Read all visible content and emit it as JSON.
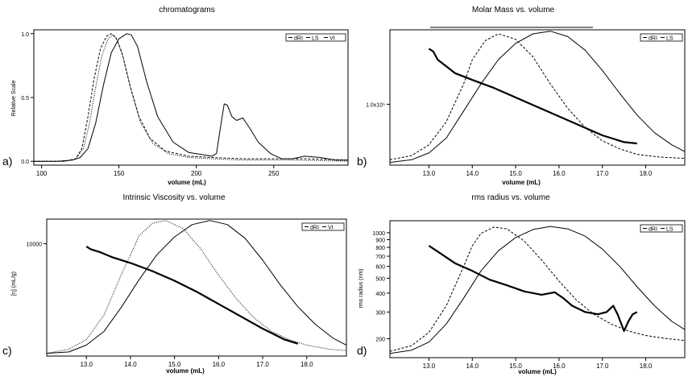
{
  "figure": {
    "panels": [
      {
        "label": "a)",
        "title": "chromatograms",
        "xlabel": "volume (mL)",
        "ylabel": "Relative Scale",
        "legend": [
          "dRI",
          "LS",
          "VI"
        ]
      },
      {
        "label": "b)",
        "title": "Molar Mass vs. volume",
        "xlabel": "volume (mL)",
        "ylabel": "",
        "legend": [
          "dRI",
          "LS"
        ]
      },
      {
        "label": "c)",
        "title": "Intrinsic Viscosity vs. volume",
        "xlabel": "volume (mL)",
        "ylabel": "[η] (mL/g)",
        "legend": [
          "dRI",
          "VI"
        ]
      },
      {
        "label": "d)",
        "title": "rms radius vs. volume",
        "xlabel": "volume (mL)",
        "ylabel": "rms radius (nm)",
        "legend": [
          "dRI",
          "LS"
        ]
      }
    ]
  },
  "chart_data": [
    {
      "type": "line",
      "title": "chromatograms",
      "xlabel": "volume (mL)",
      "ylabel": "Relative Scale",
      "xlim": [
        95,
        298
      ],
      "ylim": [
        -0.03,
        1.03
      ],
      "xticks": [
        100,
        150,
        200,
        250
      ],
      "xtick_labels": [
        "100",
        "150",
        "200",
        "250"
      ],
      "yticks": [
        0,
        0.5,
        1.0
      ],
      "ytick_labels": [
        "0.0",
        "0.5",
        "1.0"
      ],
      "legend": "top-right",
      "series": [
        {
          "name": "dRI",
          "style": "solid",
          "x": [
            95,
            110,
            120,
            125,
            130,
            135,
            140,
            145,
            150,
            155,
            158,
            162,
            168,
            175,
            185,
            195,
            205,
            210,
            213,
            216,
            218,
            220,
            223,
            226,
            230,
            235,
            240,
            248,
            255,
            262,
            270,
            280,
            290,
            298
          ],
          "y": [
            0.0,
            0.0,
            0.01,
            0.03,
            0.1,
            0.3,
            0.6,
            0.85,
            0.96,
            1.0,
            0.99,
            0.9,
            0.62,
            0.35,
            0.15,
            0.07,
            0.05,
            0.04,
            0.06,
            0.3,
            0.45,
            0.44,
            0.35,
            0.32,
            0.34,
            0.25,
            0.15,
            0.06,
            0.02,
            0.02,
            0.04,
            0.03,
            0.01,
            0.01
          ]
        },
        {
          "name": "LS",
          "style": "dashed",
          "x": [
            95,
            115,
            122,
            126,
            130,
            134,
            138,
            142,
            145,
            148,
            152,
            157,
            163,
            170,
            180,
            195,
            210,
            230,
            250,
            270,
            298
          ],
          "y": [
            0.0,
            0.0,
            0.02,
            0.1,
            0.35,
            0.65,
            0.88,
            0.98,
            1.0,
            0.97,
            0.85,
            0.6,
            0.35,
            0.18,
            0.08,
            0.04,
            0.03,
            0.02,
            0.02,
            0.02,
            0.01
          ]
        },
        {
          "name": "VI",
          "style": "dotted",
          "x": [
            95,
            115,
            122,
            127,
            131,
            135,
            139,
            143,
            146,
            149,
            153,
            158,
            164,
            172,
            182,
            195,
            210,
            230,
            260,
            298
          ],
          "y": [
            0.0,
            0.0,
            0.02,
            0.1,
            0.3,
            0.58,
            0.83,
            0.96,
            0.99,
            0.95,
            0.8,
            0.55,
            0.3,
            0.14,
            0.06,
            0.03,
            0.02,
            0.01,
            0.01,
            0.0
          ]
        }
      ]
    },
    {
      "type": "line",
      "title": "Molar Mass vs. volume",
      "xlabel": "volume (mL)",
      "ylabel": "",
      "xlim": [
        12.1,
        18.9
      ],
      "ylim": [
        0,
        1
      ],
      "xticks": [
        13.0,
        14.0,
        15.0,
        16.0,
        17.0,
        18.0
      ],
      "xtick_labels": [
        "13.0",
        "14.0",
        "15.0",
        "16.0",
        "17.0",
        "18.0"
      ],
      "ytick_annotation": {
        "label": "1.0x10⁵",
        "y": 0.45
      },
      "legend": "top-right",
      "series": [
        {
          "name": "dRI",
          "style": "solid",
          "x": [
            12.1,
            12.6,
            13.0,
            13.4,
            13.8,
            14.2,
            14.6,
            15.0,
            15.4,
            15.8,
            16.2,
            16.6,
            17.0,
            17.4,
            17.8,
            18.2,
            18.6,
            18.9
          ],
          "y": [
            0.02,
            0.04,
            0.09,
            0.2,
            0.4,
            0.6,
            0.78,
            0.9,
            0.97,
            0.99,
            0.95,
            0.85,
            0.7,
            0.53,
            0.37,
            0.24,
            0.15,
            0.1
          ]
        },
        {
          "name": "LS",
          "style": "dashed",
          "x": [
            12.1,
            12.6,
            13.0,
            13.4,
            13.8,
            14.0,
            14.3,
            14.6,
            15.0,
            15.4,
            15.8,
            16.2,
            16.6,
            17.0,
            17.4,
            17.8,
            18.3,
            18.9
          ],
          "y": [
            0.04,
            0.07,
            0.15,
            0.32,
            0.6,
            0.78,
            0.92,
            0.97,
            0.93,
            0.8,
            0.6,
            0.42,
            0.28,
            0.18,
            0.12,
            0.08,
            0.06,
            0.05
          ]
        },
        {
          "name": "Molar Mass",
          "style": "thick",
          "x": [
            13.0,
            13.1,
            13.2,
            13.4,
            13.6,
            14.0,
            14.5,
            15.0,
            15.5,
            16.0,
            16.5,
            17.0,
            17.5,
            17.8
          ],
          "y": [
            0.86,
            0.84,
            0.78,
            0.73,
            0.68,
            0.63,
            0.57,
            0.5,
            0.43,
            0.36,
            0.29,
            0.22,
            0.17,
            0.16
          ]
        }
      ]
    },
    {
      "type": "line",
      "title": "Intrinsic Viscosity vs. volume",
      "xlabel": "volume (mL)",
      "ylabel": "[η] (mL/g)",
      "xlim": [
        12.1,
        18.9
      ],
      "ylim": [
        0,
        1
      ],
      "xticks": [
        13.0,
        14.0,
        15.0,
        16.0,
        17.0,
        18.0
      ],
      "xtick_labels": [
        "13.0",
        "14.0",
        "15.0",
        "16.0",
        "17.0",
        "18.0"
      ],
      "ytick_annotation": {
        "label": "10000",
        "y": 0.82
      },
      "legend": "top-right",
      "series": [
        {
          "name": "dRI",
          "style": "solid",
          "x": [
            12.1,
            12.6,
            13.0,
            13.4,
            13.8,
            14.2,
            14.6,
            15.0,
            15.4,
            15.8,
            16.2,
            16.6,
            17.0,
            17.4,
            17.8,
            18.2,
            18.6,
            18.9
          ],
          "y": [
            0.02,
            0.03,
            0.08,
            0.18,
            0.36,
            0.56,
            0.74,
            0.87,
            0.96,
            0.99,
            0.96,
            0.86,
            0.7,
            0.52,
            0.36,
            0.23,
            0.13,
            0.08
          ]
        },
        {
          "name": "VI",
          "style": "dotted",
          "x": [
            12.1,
            12.6,
            13.0,
            13.4,
            13.8,
            14.2,
            14.5,
            14.8,
            15.2,
            15.6,
            16.0,
            16.4,
            16.8,
            17.2,
            17.6,
            18.0,
            18.5,
            18.9
          ],
          "y": [
            0.02,
            0.05,
            0.12,
            0.3,
            0.6,
            0.88,
            0.97,
            0.99,
            0.93,
            0.78,
            0.59,
            0.42,
            0.28,
            0.18,
            0.12,
            0.08,
            0.05,
            0.04
          ]
        },
        {
          "name": "Intrinsic Viscosity",
          "style": "thick",
          "x": [
            13.0,
            13.1,
            13.3,
            13.6,
            14.0,
            14.5,
            15.0,
            15.5,
            16.0,
            16.5,
            17.0,
            17.5,
            17.8
          ],
          "y": [
            0.8,
            0.78,
            0.76,
            0.72,
            0.68,
            0.62,
            0.55,
            0.47,
            0.38,
            0.29,
            0.2,
            0.12,
            0.09
          ]
        }
      ]
    },
    {
      "type": "line",
      "title": "rms radius vs. volume",
      "xlabel": "volume (mL)",
      "ylabel": "rms radius (nm)",
      "xlim": [
        12.1,
        18.9
      ],
      "ylim": [
        150,
        1200
      ],
      "y_scale": "log",
      "xticks": [
        13.0,
        14.0,
        15.0,
        16.0,
        17.0,
        18.0
      ],
      "xtick_labels": [
        "13.0",
        "14.0",
        "15.0",
        "16.0",
        "17.0",
        "18.0"
      ],
      "yticks": [
        200,
        300,
        400,
        500,
        600,
        700,
        800,
        900,
        1000
      ],
      "ytick_labels": [
        "200",
        "300",
        "400",
        "500",
        "600",
        "700",
        "800",
        "900",
        "1000"
      ],
      "legend": "top-right",
      "series": [
        {
          "name": "dRI",
          "style": "solid",
          "x": [
            12.1,
            12.6,
            13.0,
            13.4,
            13.8,
            14.2,
            14.6,
            15.0,
            15.4,
            15.8,
            16.2,
            16.6,
            17.0,
            17.4,
            17.8,
            18.2,
            18.6,
            18.9
          ],
          "y": [
            160,
            168,
            190,
            250,
            370,
            560,
            760,
            930,
            1050,
            1100,
            1060,
            950,
            780,
            600,
            440,
            330,
            260,
            230
          ]
        },
        {
          "name": "LS",
          "style": "dashed",
          "x": [
            12.1,
            12.6,
            13.0,
            13.4,
            13.8,
            14.0,
            14.2,
            14.5,
            14.8,
            15.2,
            15.6,
            16.0,
            16.4,
            16.8,
            17.2,
            17.6,
            18.0,
            18.5,
            18.9
          ],
          "y": [
            165,
            180,
            220,
            330,
            600,
            820,
            990,
            1090,
            1060,
            880,
            660,
            480,
            360,
            290,
            250,
            225,
            210,
            200,
            195
          ]
        },
        {
          "name": "rms radius",
          "style": "thick",
          "x": [
            13.0,
            13.3,
            13.6,
            14.0,
            14.4,
            14.8,
            15.2,
            15.6,
            15.9,
            16.1,
            16.3,
            16.6,
            16.9,
            17.1,
            17.25,
            17.35,
            17.5,
            17.6,
            17.7,
            17.8
          ],
          "y": [
            820,
            720,
            630,
            560,
            490,
            450,
            410,
            390,
            405,
            370,
            330,
            300,
            290,
            300,
            330,
            290,
            225,
            260,
            290,
            300
          ]
        }
      ]
    }
  ]
}
